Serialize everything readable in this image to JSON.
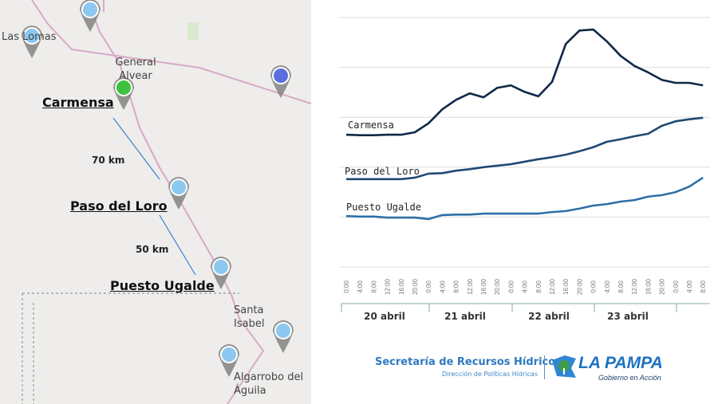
{
  "map": {
    "places": [
      "Las Lomas",
      "General Alvear",
      "Santa Isabel",
      "Algarrobo del Águila"
    ],
    "stations": [
      "Carmensa",
      "Paso del Loro",
      "Puesto Ugalde"
    ],
    "distances": [
      "70 km",
      "50 km"
    ],
    "colors": {
      "pin_default": "#8cc8ef",
      "pin_active": "#3ec23e",
      "pin_other": "#5b6ee0",
      "road": "#d8a9c8"
    }
  },
  "chart_data": {
    "type": "line",
    "title": "",
    "xlabel": "",
    "ylabel": "",
    "ylim": [
      0,
      5
    ],
    "grid": true,
    "x": [
      "0:00",
      "4:00",
      "8:00",
      "12:00",
      "16:00",
      "20:00",
      "0:00",
      "4:00",
      "8:00",
      "12:00",
      "16:00",
      "20:00",
      "0:00",
      "4:00",
      "8:00",
      "12:00",
      "16:00",
      "20:00",
      "0:00",
      "4:00",
      "8:00",
      "12:00",
      "16:00",
      "20:00",
      "0:00",
      "4:00",
      "8:00"
    ],
    "day_groups": [
      "20 abril",
      "21 abril",
      "22 abril",
      "23 abril"
    ],
    "series": [
      {
        "name": "Carmensa",
        "color": "#0f2847",
        "values": [
          2.65,
          2.64,
          2.64,
          2.65,
          2.65,
          2.7,
          2.88,
          3.16,
          3.35,
          3.48,
          3.4,
          3.59,
          3.64,
          3.51,
          3.42,
          3.71,
          4.47,
          4.74,
          4.76,
          4.52,
          4.23,
          4.03,
          3.9,
          3.75,
          3.69,
          3.69,
          3.64
        ]
      },
      {
        "name": "Paso del Loro",
        "color": "#1f4a73",
        "values": [
          1.76,
          1.76,
          1.76,
          1.76,
          1.76,
          1.79,
          1.87,
          1.88,
          1.93,
          1.96,
          2.0,
          2.03,
          2.06,
          2.11,
          2.16,
          2.2,
          2.25,
          2.32,
          2.4,
          2.51,
          2.56,
          2.62,
          2.67,
          2.83,
          2.92,
          2.96,
          2.99
        ]
      },
      {
        "name": "Puesto Ugalde",
        "color": "#2e6fa8",
        "values": [
          1.02,
          1.01,
          1.01,
          0.99,
          0.99,
          0.99,
          0.96,
          1.04,
          1.05,
          1.05,
          1.07,
          1.07,
          1.07,
          1.07,
          1.07,
          1.1,
          1.12,
          1.17,
          1.23,
          1.26,
          1.31,
          1.34,
          1.41,
          1.44,
          1.5,
          1.61,
          1.79
        ]
      }
    ]
  },
  "logo": {
    "secretaria": "Secretaría de Recursos Hídricos",
    "direccion": "Dirección de Políticas Hídricas",
    "brand": "LA PAMPA",
    "tagline": "Gobierno en Acción"
  }
}
